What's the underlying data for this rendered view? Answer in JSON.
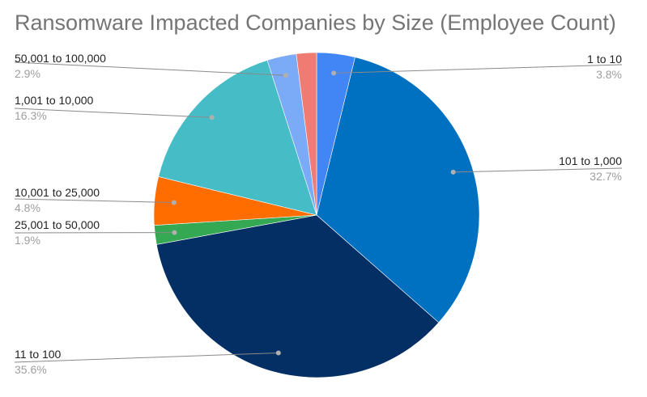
{
  "chart_data": {
    "type": "pie",
    "title": "Ransomware Impacted Companies by Size (Employee Count)",
    "slices": [
      {
        "label": "1 to 10",
        "value": 3.8,
        "display": "3.8%",
        "color": "#4285f4"
      },
      {
        "label": "101 to 1,000",
        "value": 32.7,
        "display": "32.7%",
        "color": "#0070c0"
      },
      {
        "label": "11 to 100",
        "value": 35.6,
        "display": "35.6%",
        "color": "#042f65"
      },
      {
        "label": "25,001 to 50,000",
        "value": 1.9,
        "display": "1.9%",
        "color": "#34a853"
      },
      {
        "label": "10,001 to 25,000",
        "value": 4.8,
        "display": "4.8%",
        "color": "#ff6d01"
      },
      {
        "label": "1,001 to 10,000",
        "value": 16.3,
        "display": "16.3%",
        "color": "#46bdc6"
      },
      {
        "label": "50,001 to 100,000",
        "value": 2.9,
        "display": "2.9%",
        "color": "#7baaf7"
      },
      {
        "label": "",
        "value": 2.0,
        "display": "",
        "color": "#f07b72"
      }
    ],
    "legend": "none"
  }
}
